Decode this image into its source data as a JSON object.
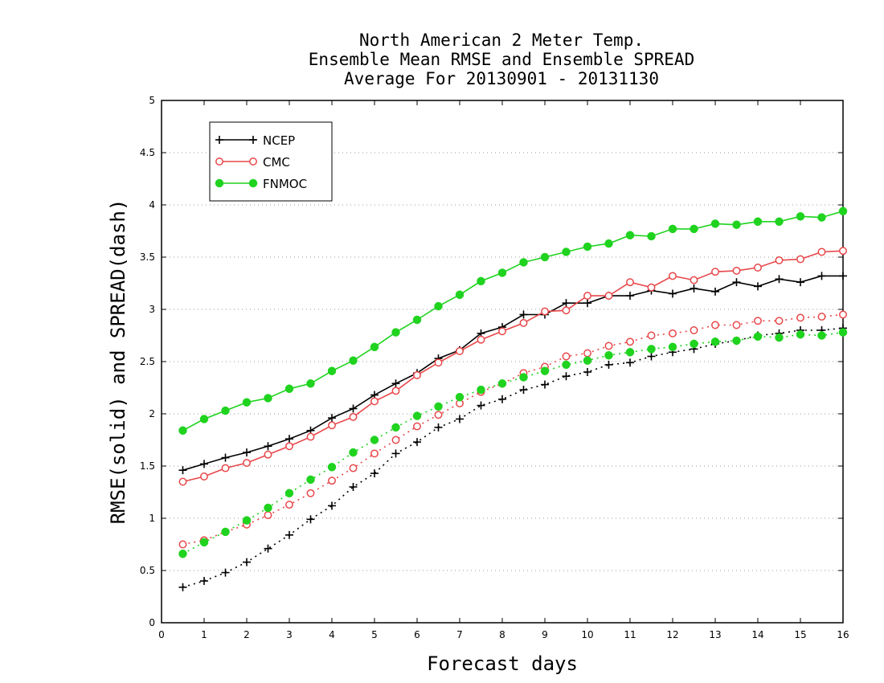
{
  "chart_data": {
    "type": "line",
    "title": [
      "North American 2 Meter Temp.",
      "Ensemble Mean RMSE and Ensemble SPREAD",
      "Average For 20130901 - 20131130"
    ],
    "xlabel": "Forecast days",
    "ylabel": "RMSE(solid) and SPREAD(dash)",
    "xlim": [
      0,
      16
    ],
    "ylim": [
      0,
      5
    ],
    "xticks": [
      0,
      1,
      2,
      3,
      4,
      5,
      6,
      7,
      8,
      9,
      10,
      11,
      12,
      13,
      14,
      15,
      16
    ],
    "yticks": [
      0,
      0.5,
      1,
      1.5,
      2,
      2.5,
      3,
      3.5,
      4,
      4.5,
      5
    ],
    "grid": true,
    "legend_position": "top-left",
    "x": [
      0.5,
      1,
      1.5,
      2,
      2.5,
      3,
      3.5,
      4,
      4.5,
      5,
      5.5,
      6,
      6.5,
      7,
      7.5,
      8,
      8.5,
      9,
      9.5,
      10,
      10.5,
      11,
      11.5,
      12,
      12.5,
      13,
      13.5,
      14,
      14.5,
      15,
      15.5,
      16
    ],
    "series": [
      {
        "name": "NCEP",
        "color": "#000000",
        "marker": "plus",
        "style": "solid",
        "values": [
          1.46,
          1.52,
          1.58,
          1.63,
          1.69,
          1.76,
          1.84,
          1.96,
          2.05,
          2.18,
          2.29,
          2.39,
          2.53,
          2.61,
          2.77,
          2.83,
          2.95,
          2.95,
          3.06,
          3.06,
          3.13,
          3.13,
          3.18,
          3.15,
          3.2,
          3.17,
          3.26,
          3.22,
          3.29,
          3.26,
          3.32,
          3.32
        ]
      },
      {
        "name": "CMC",
        "color": "#e8474a",
        "marker": "circle-open",
        "style": "solid",
        "values": [
          1.35,
          1.4,
          1.48,
          1.53,
          1.61,
          1.69,
          1.78,
          1.89,
          1.97,
          2.12,
          2.22,
          2.37,
          2.49,
          2.6,
          2.71,
          2.79,
          2.87,
          2.98,
          2.99,
          3.13,
          3.13,
          3.26,
          3.21,
          3.32,
          3.28,
          3.36,
          3.37,
          3.4,
          3.47,
          3.48,
          3.55,
          3.56
        ]
      },
      {
        "name": "FNMOC",
        "color": "#1fd31f",
        "marker": "circle-filled",
        "style": "solid",
        "values": [
          1.84,
          1.95,
          2.03,
          2.11,
          2.15,
          2.24,
          2.29,
          2.41,
          2.51,
          2.64,
          2.78,
          2.9,
          3.03,
          3.14,
          3.27,
          3.35,
          3.45,
          3.5,
          3.55,
          3.6,
          3.63,
          3.71,
          3.7,
          3.77,
          3.77,
          3.82,
          3.81,
          3.84,
          3.84,
          3.89,
          3.88,
          3.94
        ]
      },
      {
        "color": "#000000",
        "marker": "plus",
        "style": "dash",
        "values": [
          0.34,
          0.4,
          0.48,
          0.58,
          0.71,
          0.84,
          0.99,
          1.12,
          1.3,
          1.43,
          1.62,
          1.73,
          1.87,
          1.95,
          2.08,
          2.14,
          2.23,
          2.28,
          2.36,
          2.4,
          2.47,
          2.49,
          2.55,
          2.59,
          2.62,
          2.67,
          2.7,
          2.75,
          2.77,
          2.8,
          2.8,
          2.82
        ]
      },
      {
        "color": "#e8474a",
        "marker": "circle-open",
        "style": "dash",
        "values": [
          0.75,
          0.79,
          0.87,
          0.94,
          1.03,
          1.13,
          1.24,
          1.36,
          1.48,
          1.62,
          1.75,
          1.88,
          1.99,
          2.1,
          2.21,
          2.29,
          2.39,
          2.45,
          2.55,
          2.58,
          2.65,
          2.69,
          2.75,
          2.77,
          2.8,
          2.85,
          2.85,
          2.89,
          2.89,
          2.92,
          2.93,
          2.95
        ]
      },
      {
        "color": "#1fd31f",
        "marker": "circle-filled",
        "style": "dash",
        "values": [
          0.66,
          0.77,
          0.87,
          0.98,
          1.1,
          1.24,
          1.37,
          1.49,
          1.63,
          1.75,
          1.87,
          1.98,
          2.07,
          2.16,
          2.23,
          2.29,
          2.35,
          2.41,
          2.47,
          2.51,
          2.56,
          2.59,
          2.62,
          2.64,
          2.67,
          2.69,
          2.7,
          2.74,
          2.73,
          2.76,
          2.75,
          2.78
        ]
      }
    ]
  }
}
